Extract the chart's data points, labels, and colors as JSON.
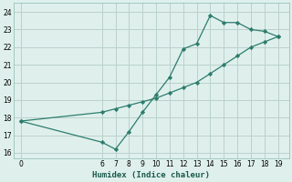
{
  "xlabel": "Humidex (Indice chaleur)",
  "curve_x": [
    0,
    6,
    7,
    8,
    9,
    10,
    11,
    12,
    13,
    14,
    15,
    16,
    17,
    18,
    19
  ],
  "curve_y": [
    17.8,
    16.6,
    16.2,
    17.2,
    18.3,
    19.3,
    20.3,
    21.9,
    22.2,
    23.8,
    23.4,
    23.4,
    23.0,
    22.9,
    22.6
  ],
  "straight_x": [
    0,
    6,
    7,
    8,
    9,
    10,
    11,
    12,
    13,
    14,
    15,
    16,
    17,
    18,
    19
  ],
  "straight_y": [
    17.8,
    18.3,
    18.5,
    18.7,
    18.9,
    19.1,
    19.4,
    19.7,
    20.0,
    20.5,
    21.0,
    21.5,
    22.0,
    22.3,
    22.6
  ],
  "color": "#2d7d6e",
  "bg_color": "#dff0ec",
  "grid_color": "#b8d4ce",
  "xlim": [
    -0.5,
    19.8
  ],
  "ylim": [
    15.7,
    24.5
  ],
  "yticks": [
    16,
    17,
    18,
    19,
    20,
    21,
    22,
    23,
    24
  ],
  "xticks": [
    0,
    6,
    7,
    8,
    9,
    10,
    11,
    12,
    13,
    14,
    15,
    16,
    17,
    18,
    19
  ]
}
